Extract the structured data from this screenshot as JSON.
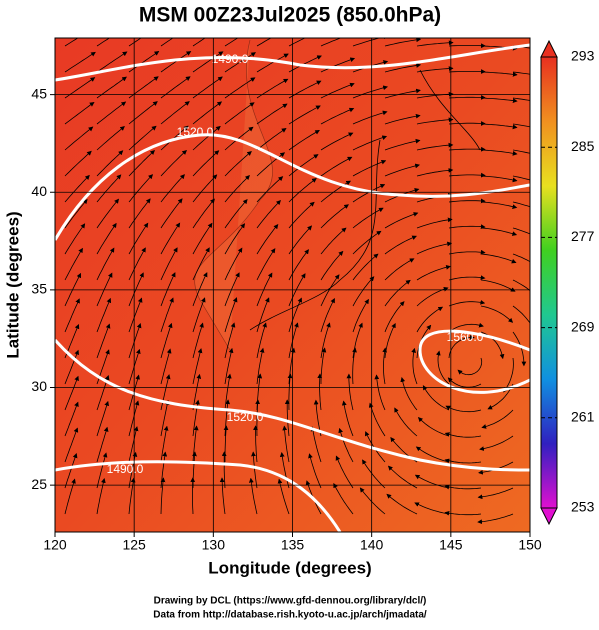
{
  "chart_data": {
    "type": "map",
    "title": "MSM 00Z23Jul2025 (850.0hPa)",
    "x_label": "Longitude (degrees)",
    "y_label": "Latitude  (degrees)",
    "xlim": [
      120,
      150
    ],
    "xticks": [
      120,
      125,
      130,
      135,
      140,
      145,
      150
    ],
    "ylim": [
      22.6,
      47.9
    ],
    "yticks": [
      25,
      30,
      35,
      40,
      45
    ],
    "grid": true,
    "colorbar": {
      "clim": [
        253,
        293
      ],
      "ticks": [
        253,
        261,
        269,
        277,
        285,
        293
      ],
      "colormap": [
        "#e010d0",
        "#3020c0",
        "#1090e0",
        "#20c890",
        "#40d020",
        "#e8e020",
        "#f09020",
        "#e83020"
      ]
    },
    "contour_labels": [
      "1490.0",
      "1520.0",
      "1560.0",
      "1520.0",
      "1490.0"
    ],
    "footer": [
      "Drawing by DCL (https://www.gfd-dennou.org/library/dcl/)",
      "Data from http://database.rish.kyoto-u.ac.jp/arch/jmadata/"
    ]
  }
}
